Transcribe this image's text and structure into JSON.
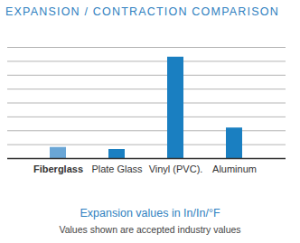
{
  "chart_data": {
    "type": "bar",
    "title": "EXPANSION / CONTRACTION COMPARISON",
    "subtitle": "Expansion values in In/In/°F",
    "note": "Values shown are accepted industry values",
    "categories": [
      "Fiberglass",
      "Plate Glass",
      "Vinyl (PVC).",
      "Aluminum"
    ],
    "values": [
      0.8,
      0.65,
      7.3,
      2.2
    ],
    "colors": [
      "#6aa6d6",
      "#1a7fc1",
      "#1a7fc1",
      "#1a7fc1"
    ],
    "ylim": [
      0,
      8
    ],
    "yticks": [
      0,
      1,
      2,
      3,
      4,
      5,
      6,
      7,
      8
    ],
    "grid": true,
    "tick_labels": "x"
  }
}
